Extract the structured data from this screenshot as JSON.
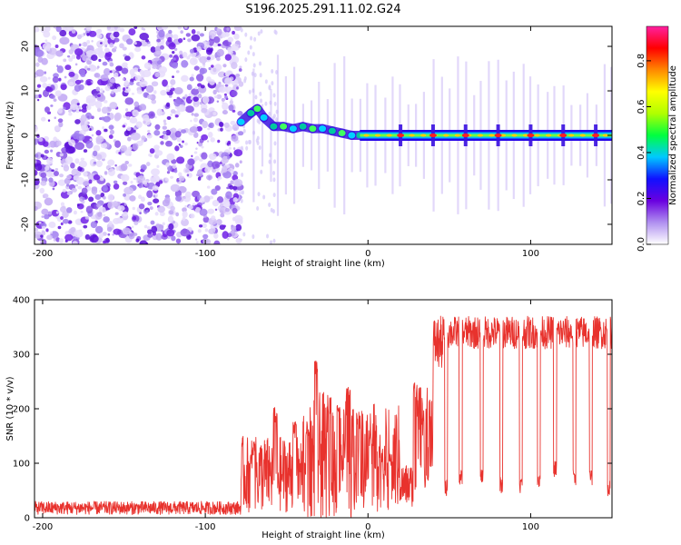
{
  "title": "S196.2025.291.11.02.G24",
  "chart_data": [
    {
      "type": "heatmap",
      "name": "spectrogram",
      "xlabel": "Height of straight line (km)",
      "ylabel": "Frequency (Hz)",
      "xlim": [
        -205,
        150
      ],
      "ylim": [
        -24.5,
        24.5
      ],
      "x_ticks": [
        -200,
        -100,
        0,
        100
      ],
      "x_tick_labels": [
        "-200",
        "-100",
        "0",
        "100"
      ],
      "y_ticks": [
        20,
        10,
        0,
        -10,
        -20
      ],
      "y_tick_labels": [
        "20",
        "10",
        "0",
        "-10",
        "-20"
      ],
      "noise_region_x": [
        -205,
        -78
      ],
      "transition_region_x": [
        -78,
        -5
      ],
      "tone_region_x": [
        -5,
        150
      ],
      "tone_frequency_hz": 0,
      "track_points": [
        {
          "x": -78,
          "y": 3
        },
        {
          "x": -72,
          "y": 5
        },
        {
          "x": -68,
          "y": 6
        },
        {
          "x": -64,
          "y": 4
        },
        {
          "x": -58,
          "y": 2
        },
        {
          "x": -52,
          "y": 2
        },
        {
          "x": -46,
          "y": 1.5
        },
        {
          "x": -40,
          "y": 2
        },
        {
          "x": -34,
          "y": 1.5
        },
        {
          "x": -28,
          "y": 1.5
        },
        {
          "x": -22,
          "y": 1
        },
        {
          "x": -16,
          "y": 0.5
        },
        {
          "x": -10,
          "y": 0
        },
        {
          "x": -5,
          "y": 0
        }
      ],
      "peak_bright_x": [
        20,
        40,
        60,
        80,
        100,
        120,
        140
      ],
      "colorbar": {
        "label": "Normalized spectral amplitude",
        "range": [
          0,
          0.95
        ],
        "ticks": [
          0.0,
          0.2,
          0.4,
          0.6,
          0.8
        ],
        "tick_labels": [
          "0.0",
          "0.2",
          "0.4",
          "0.6",
          "0.8"
        ],
        "colors": [
          "#ffffff",
          "#b090f0",
          "#6a00e0",
          "#1010ff",
          "#00c8ff",
          "#00ff40",
          "#b0ff00",
          "#ffff00",
          "#ff8800",
          "#ff0000",
          "#ff20a0"
        ]
      }
    },
    {
      "type": "line",
      "name": "snr",
      "xlabel": "Height of straight line (km)",
      "ylabel": "SNR (10 * v/v)",
      "xlim": [
        -205,
        150
      ],
      "ylim": [
        0,
        400
      ],
      "x_ticks": [
        -200,
        -100,
        0,
        100
      ],
      "x_tick_labels": [
        "-200",
        "-100",
        "0",
        "100"
      ],
      "y_ticks": [
        0,
        100,
        200,
        300,
        400
      ],
      "y_tick_labels": [
        "0",
        "100",
        "200",
        "300",
        "400"
      ],
      "line_color": "#e8322d",
      "segments": [
        {
          "x_range": [
            -205,
            -78
          ],
          "level": 18,
          "spread": 12
        },
        {
          "x_range": [
            -78,
            -40
          ],
          "level": 80,
          "spread": 70
        },
        {
          "x_range": [
            -40,
            -10
          ],
          "level": 110,
          "spread": 120
        },
        {
          "x_range": [
            -10,
            20
          ],
          "level": 110,
          "spread": 100
        },
        {
          "x_range": [
            20,
            30
          ],
          "level": 60,
          "spread": 40
        },
        {
          "x_range": [
            30,
            40
          ],
          "level": 170,
          "spread": 80
        },
        {
          "x_range": [
            40,
            46
          ],
          "level": 320,
          "spread": 50
        },
        {
          "x_range": [
            46,
            150
          ],
          "level": 340,
          "spread": 30
        }
      ],
      "peaks": [
        {
          "x": -70,
          "y": 140
        },
        {
          "x": -57,
          "y": 205
        },
        {
          "x": -45,
          "y": 180
        },
        {
          "x": -37,
          "y": 180
        },
        {
          "x": -32,
          "y": 290
        },
        {
          "x": -24,
          "y": 220
        },
        {
          "x": -18,
          "y": 210
        },
        {
          "x": -12,
          "y": 240
        },
        {
          "x": -6,
          "y": 200
        },
        {
          "x": 2,
          "y": 150
        },
        {
          "x": 8,
          "y": 130
        },
        {
          "x": 14,
          "y": 125
        },
        {
          "x": 29,
          "y": 250
        },
        {
          "x": 35,
          "y": 200
        },
        {
          "x": 36,
          "y": 85
        }
      ],
      "dips": [
        {
          "x": 48,
          "y": 40
        },
        {
          "x": 57,
          "y": 60
        },
        {
          "x": 70,
          "y": 60
        },
        {
          "x": 82,
          "y": 45
        },
        {
          "x": 94,
          "y": 45
        },
        {
          "x": 105,
          "y": 55
        },
        {
          "x": 115,
          "y": 75
        },
        {
          "x": 127,
          "y": 60
        },
        {
          "x": 137,
          "y": 60
        },
        {
          "x": 148,
          "y": 40
        }
      ]
    }
  ]
}
